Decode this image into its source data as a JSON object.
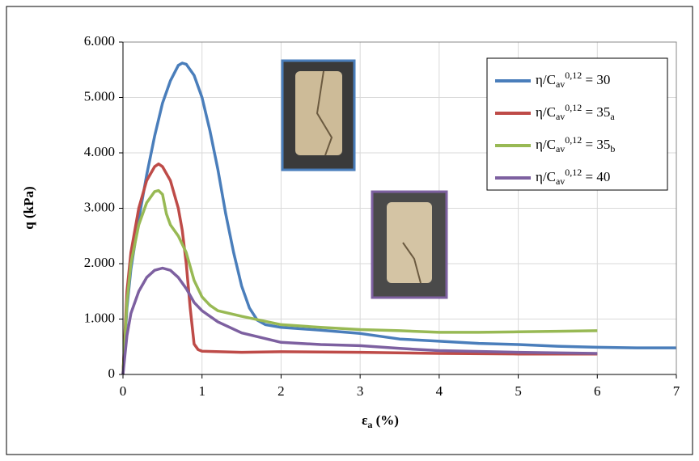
{
  "chart_data": {
    "type": "line",
    "x_label": "εa (%)",
    "y_label": "q (kPa)",
    "xlim": [
      0,
      7
    ],
    "xticks": [
      0,
      1,
      2,
      3,
      4,
      5,
      6,
      7
    ],
    "ylim": [
      0,
      6000
    ],
    "yticks": [
      0,
      {
        "value": 1000,
        "label": "1.000"
      },
      {
        "value": 2000,
        "label": "2.000"
      },
      {
        "value": 3000,
        "label": "3.000"
      },
      {
        "value": 4000,
        "label": "4.000"
      },
      {
        "value": 5000,
        "label": "5.000"
      },
      {
        "value": 6000,
        "label": "6.000"
      }
    ],
    "grid": true,
    "legend": "upper right",
    "series": [
      {
        "name": "η/Cav0,12 = 30",
        "color": "#4a7ebb",
        "x": [
          0,
          0.05,
          0.1,
          0.2,
          0.3,
          0.4,
          0.5,
          0.6,
          0.7,
          0.75,
          0.8,
          0.9,
          1.0,
          1.1,
          1.2,
          1.3,
          1.4,
          1.5,
          1.6,
          1.7,
          1.8,
          2,
          2.5,
          3,
          3.5,
          4,
          4.5,
          5,
          5.5,
          6,
          6.5,
          7
        ],
        "values": [
          0,
          1200,
          1900,
          2800,
          3600,
          4300,
          4900,
          5300,
          5580,
          5620,
          5600,
          5400,
          5000,
          4400,
          3700,
          2900,
          2200,
          1600,
          1200,
          980,
          900,
          850,
          800,
          740,
          640,
          600,
          560,
          540,
          510,
          490,
          480,
          480
        ]
      },
      {
        "name": "η/Cav0,12 = 35a",
        "color": "#be4b48",
        "x": [
          0,
          0.05,
          0.1,
          0.2,
          0.3,
          0.4,
          0.45,
          0.5,
          0.6,
          0.7,
          0.75,
          0.8,
          0.85,
          0.9,
          0.95,
          1.0,
          1.5,
          2,
          3,
          4,
          5,
          6
        ],
        "values": [
          0,
          1500,
          2200,
          3000,
          3500,
          3750,
          3800,
          3750,
          3500,
          3000,
          2600,
          2000,
          1200,
          550,
          450,
          420,
          400,
          410,
          400,
          380,
          370,
          370
        ]
      },
      {
        "name": "η/Cav0,12 = 35b",
        "color": "#98b954",
        "x": [
          0,
          0.05,
          0.1,
          0.2,
          0.3,
          0.4,
          0.45,
          0.5,
          0.55,
          0.6,
          0.7,
          0.8,
          0.9,
          1.0,
          1.1,
          1.2,
          1.5,
          2,
          2.5,
          3,
          3.5,
          4,
          4.5,
          5,
          5.5,
          6
        ],
        "values": [
          0,
          1300,
          2000,
          2700,
          3100,
          3300,
          3320,
          3250,
          2900,
          2700,
          2500,
          2200,
          1700,
          1400,
          1250,
          1150,
          1050,
          900,
          850,
          810,
          790,
          760,
          760,
          770,
          780,
          790
        ]
      },
      {
        "name": "η/Cav0,12 = 40",
        "color": "#7d60a0",
        "x": [
          0,
          0.05,
          0.1,
          0.2,
          0.3,
          0.4,
          0.5,
          0.6,
          0.7,
          0.8,
          0.9,
          1.0,
          1.2,
          1.5,
          2,
          2.5,
          3,
          3.5,
          4,
          5,
          6
        ],
        "values": [
          0,
          700,
          1100,
          1500,
          1750,
          1880,
          1920,
          1880,
          1750,
          1550,
          1300,
          1150,
          950,
          750,
          580,
          540,
          520,
          470,
          430,
          400,
          380
        ]
      }
    ]
  }
}
